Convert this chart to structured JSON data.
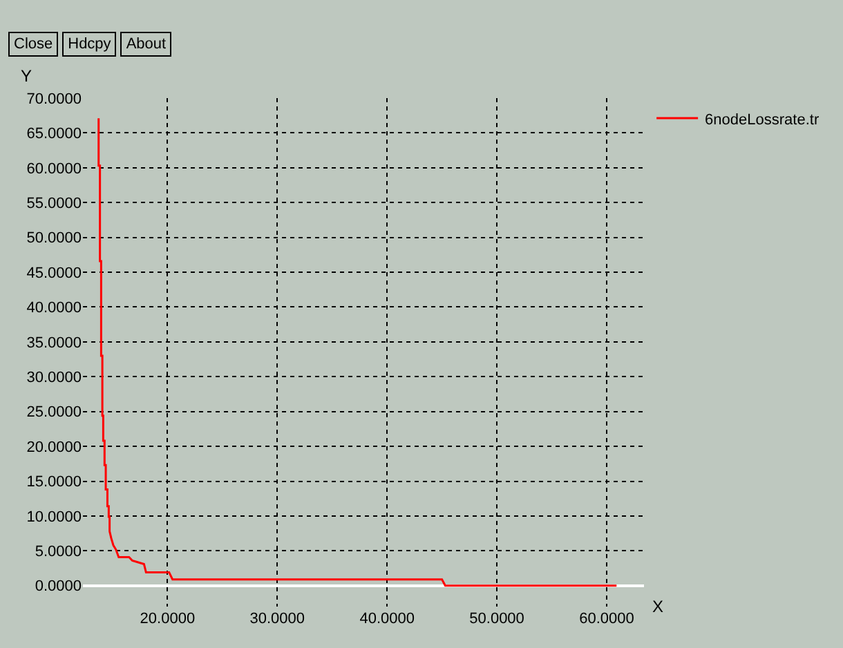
{
  "chart_data": {
    "type": "line",
    "xlabel": "X",
    "ylabel": "Y",
    "annotations": [
      "Close",
      "Hdcpy",
      "About"
    ],
    "x": [
      13.73,
      13.73,
      13.85,
      13.85,
      13.96,
      13.96,
      14.07,
      14.07,
      14.15,
      14.15,
      14.27,
      14.27,
      14.38,
      14.38,
      14.53,
      14.53,
      14.65,
      14.65,
      14.73,
      14.73,
      14.88,
      15.07,
      15.3,
      15.56,
      15.95,
      16.5,
      16.8,
      17.86,
      18.05,
      20.15,
      20.46,
      45.0,
      45.3,
      60.9
    ],
    "series": [
      {
        "name": "6nodeLossrate.tr",
        "color": "#ff0000",
        "values": [
          67.1,
          60.3,
          60.3,
          46.6,
          46.6,
          33.0,
          33.0,
          24.4,
          24.4,
          20.8,
          20.8,
          17.3,
          17.3,
          13.8,
          13.8,
          11.4,
          11.4,
          9.9,
          9.9,
          7.8,
          6.8,
          5.8,
          5.2,
          4.1,
          4.1,
          4.1,
          3.6,
          3.1,
          1.9,
          1.9,
          0.9,
          0.9,
          0,
          0
        ]
      }
    ],
    "xlim": [
      12.3,
      63.4
    ],
    "ylim": [
      -3,
      70
    ],
    "xticks": [
      {
        "value": 20,
        "label": "20.0000"
      },
      {
        "value": 30,
        "label": "30.0000"
      },
      {
        "value": 40,
        "label": "40.0000"
      },
      {
        "value": 50,
        "label": "50.0000"
      },
      {
        "value": 60,
        "label": "60.0000"
      }
    ],
    "yticks": [
      {
        "value": 0,
        "label": "0.0000"
      },
      {
        "value": 5,
        "label": "5.0000"
      },
      {
        "value": 10,
        "label": "10.0000"
      },
      {
        "value": 15,
        "label": "15.0000"
      },
      {
        "value": 20,
        "label": "20.0000"
      },
      {
        "value": 25,
        "label": "25.0000"
      },
      {
        "value": 30,
        "label": "30.0000"
      },
      {
        "value": 35,
        "label": "35.0000"
      },
      {
        "value": 40,
        "label": "40.0000"
      },
      {
        "value": 45,
        "label": "45.0000"
      },
      {
        "value": 50,
        "label": "50.0000"
      },
      {
        "value": 55,
        "label": "55.0000"
      },
      {
        "value": 60,
        "label": "60.0000"
      },
      {
        "value": 65,
        "label": "65.0000"
      },
      {
        "value": 70,
        "label": "70.0000"
      }
    ],
    "grid": true,
    "legend": "top right",
    "marker": "none",
    "line_style": "solid"
  }
}
